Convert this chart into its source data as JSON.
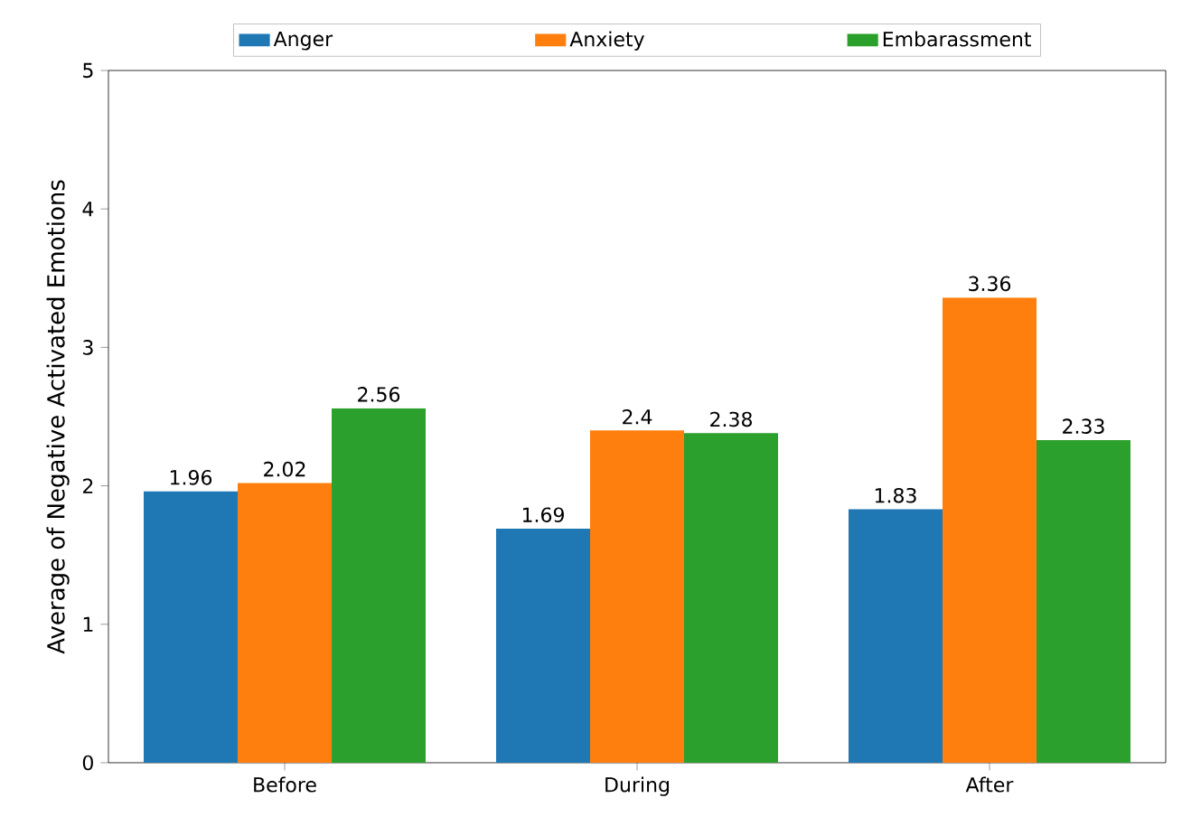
{
  "chart_data": {
    "type": "bar",
    "ylabel": "Average of Negative Activated Emotions",
    "categories": [
      "Before",
      "During",
      "After"
    ],
    "series": [
      {
        "name": "Anger",
        "color": "#1f77b4",
        "values": [
          1.96,
          1.69,
          1.83
        ]
      },
      {
        "name": "Anxiety",
        "color": "#ff7f0e",
        "values": [
          2.02,
          2.4,
          3.36
        ]
      },
      {
        "name": "Embarassment",
        "color": "#2ca02c",
        "values": [
          2.56,
          2.38,
          2.33
        ]
      }
    ],
    "ylim": [
      0,
      5
    ],
    "yticks": [
      0,
      1,
      2,
      3,
      4,
      5
    ],
    "data_labels": true,
    "legend": "top",
    "grid": false
  }
}
